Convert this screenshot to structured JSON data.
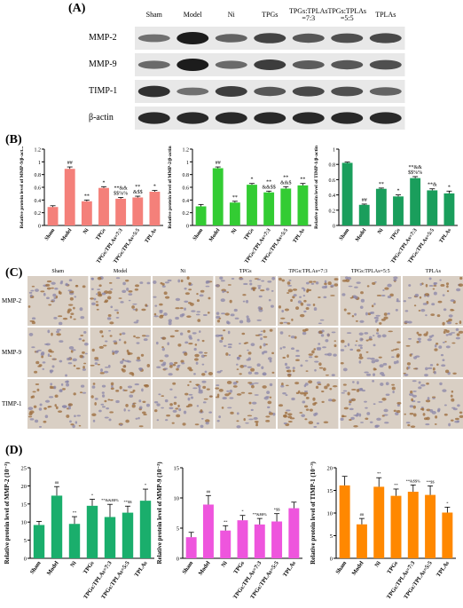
{
  "panels": {
    "A": "(A)",
    "B": "(B)",
    "C": "(C)",
    "D": "(D)"
  },
  "western_blot": {
    "lanes": [
      "Sham",
      "Model",
      "Ni",
      "TPGs",
      "TPGs:TPLAs\n=7:3",
      "TPGs:TPLAs\n=5:5",
      "TPLAs"
    ],
    "proteins": [
      "MMP-2",
      "MMP-9",
      "TIMP-1",
      "β-actin"
    ],
    "band_intensity": [
      [
        0.35,
        1.0,
        0.45,
        0.7,
        0.55,
        0.6,
        0.65
      ],
      [
        0.4,
        1.0,
        0.4,
        0.75,
        0.5,
        0.55,
        0.6
      ],
      [
        0.85,
        0.35,
        0.75,
        0.55,
        0.65,
        0.6,
        0.45
      ],
      [
        0.9,
        0.9,
        0.9,
        0.9,
        0.9,
        0.9,
        0.9
      ]
    ]
  },
  "chart_data": [
    {
      "type": "bar",
      "panel": "B",
      "color": "#f4807a",
      "ylabel": "Relative protein level of MMP-9/β-act...",
      "categories": [
        "Sham",
        "Model",
        "Ni",
        "TPGs",
        "TPGs:TPLAs=7:3",
        "TPGs:TPLAs=5:5",
        "TPLAs"
      ],
      "values": [
        0.29,
        0.89,
        0.38,
        0.59,
        0.42,
        0.44,
        0.53
      ],
      "errors": [
        0.02,
        0.03,
        0.02,
        0.02,
        0.02,
        0.02,
        0.02
      ],
      "annotations": [
        "",
        "##",
        "**",
        "*",
        "**&&\n$$%%",
        "**\n&$$",
        "*"
      ],
      "ylim": [
        0,
        1.2
      ],
      "yticks": [
        0,
        0.2,
        0.4,
        0.6,
        0.8,
        1.0,
        1.2
      ]
    },
    {
      "type": "bar",
      "panel": "B",
      "color": "#33cc33",
      "ylabel": "Relative protein level of MMP-2/β-actin",
      "categories": [
        "Sham",
        "Model",
        "Ni",
        "TPGs",
        "TPGs:TPLAs=7:3",
        "TPGs:TPLAs=5:5",
        "TPLAs"
      ],
      "values": [
        0.3,
        0.9,
        0.36,
        0.64,
        0.52,
        0.58,
        0.63
      ],
      "errors": [
        0.03,
        0.02,
        0.02,
        0.02,
        0.02,
        0.03,
        0.03
      ],
      "annotations": [
        "",
        "##",
        "**",
        "*",
        "**\n&&$$",
        "**\n&&$",
        "**"
      ],
      "ylim": [
        0,
        1.2
      ],
      "yticks": [
        0,
        0.2,
        0.4,
        0.6,
        0.8,
        1.0,
        1.2
      ]
    },
    {
      "type": "bar",
      "panel": "B",
      "color": "#1a9e5c",
      "ylabel": "Relative protein level of TIMP-1/β-actin",
      "categories": [
        "Sham",
        "Model",
        "Ni",
        "TPGs",
        "TPGs:TPLAs=7:3",
        "TPGs:TPLAs=5:5",
        "TPLAs"
      ],
      "values": [
        0.82,
        0.27,
        0.48,
        0.38,
        0.62,
        0.46,
        0.42
      ],
      "errors": [
        0.01,
        0.01,
        0.01,
        0.02,
        0.02,
        0.02,
        0.03
      ],
      "annotations": [
        "",
        "##",
        "**",
        "*",
        "**&&\n$$%%",
        "**&",
        "*"
      ],
      "ylim": [
        0,
        1.0
      ],
      "yticks": [
        0,
        0.2,
        0.4,
        0.6,
        0.8,
        1.0
      ]
    },
    {
      "type": "bar",
      "panel": "D",
      "color": "#1aae6c",
      "ylabel": "Relative protein level of MMP-2 (10⁻³)",
      "categories": [
        "Sham",
        "Model",
        "Ni",
        "TPGs",
        "TPGs:TPLAs=7:3",
        "TPGs:TPLAs=5:5",
        "TPLAs"
      ],
      "values": [
        9.2,
        17.3,
        9.5,
        14.5,
        11.4,
        12.6,
        15.9
      ],
      "errors": [
        1.0,
        2.5,
        2.0,
        1.8,
        3.5,
        1.8,
        3.2
      ],
      "annotations": [
        "",
        "##",
        "**",
        "*",
        "**&&$$%",
        "**$$",
        "*"
      ],
      "ylim": [
        0,
        25
      ],
      "yticks": [
        0,
        5,
        10,
        15,
        20,
        25
      ]
    },
    {
      "type": "bar",
      "panel": "D",
      "color": "#ee55dd",
      "ylabel": "Relative protein level of MMP-9 (10⁻³)",
      "categories": [
        "Sham",
        "Model",
        "Ni",
        "TPGs",
        "TPGs:TPLAs=7:3",
        "TPGs:TPLAs=5:5",
        "TPLAs"
      ],
      "values": [
        3.5,
        8.9,
        4.6,
        6.3,
        5.6,
        6.1,
        8.3
      ],
      "errors": [
        0.8,
        1.5,
        0.8,
        0.8,
        1.0,
        1.3,
        1.0
      ],
      "annotations": [
        "",
        "##",
        "**",
        "*",
        "**&$$%",
        "*$$",
        ""
      ],
      "ylim": [
        0,
        15
      ],
      "yticks": [
        0,
        5,
        10,
        15
      ]
    },
    {
      "type": "bar",
      "panel": "D",
      "color": "#ff8800",
      "ylabel": "Relative protein level of TIMP-1 (10⁻³)",
      "categories": [
        "Sham",
        "Model",
        "Ni",
        "TPGs",
        "TPGs:TPLAs=7:3",
        "TPGs:TPLAs=5:5",
        "TPLAs"
      ],
      "values": [
        16.1,
        7.5,
        15.8,
        13.8,
        14.7,
        14.0,
        10.1
      ],
      "errors": [
        2.0,
        1.3,
        2.0,
        1.5,
        1.5,
        2.0,
        1.2
      ],
      "annotations": [
        "",
        "##",
        "**",
        "**",
        "**&$$%",
        "**$$",
        "*"
      ],
      "ylim": [
        0,
        20
      ],
      "yticks": [
        0,
        5,
        10,
        15,
        20
      ]
    }
  ],
  "ihc": {
    "columns": [
      "Sham",
      "Model",
      "Ni",
      "TPGs",
      "TPGs:TPLAs=7:3",
      "TPGs:TPLAs=5:5",
      "TPLAs"
    ],
    "rows": [
      "MMP-2",
      "MMP-9",
      "TIMP-1"
    ]
  }
}
